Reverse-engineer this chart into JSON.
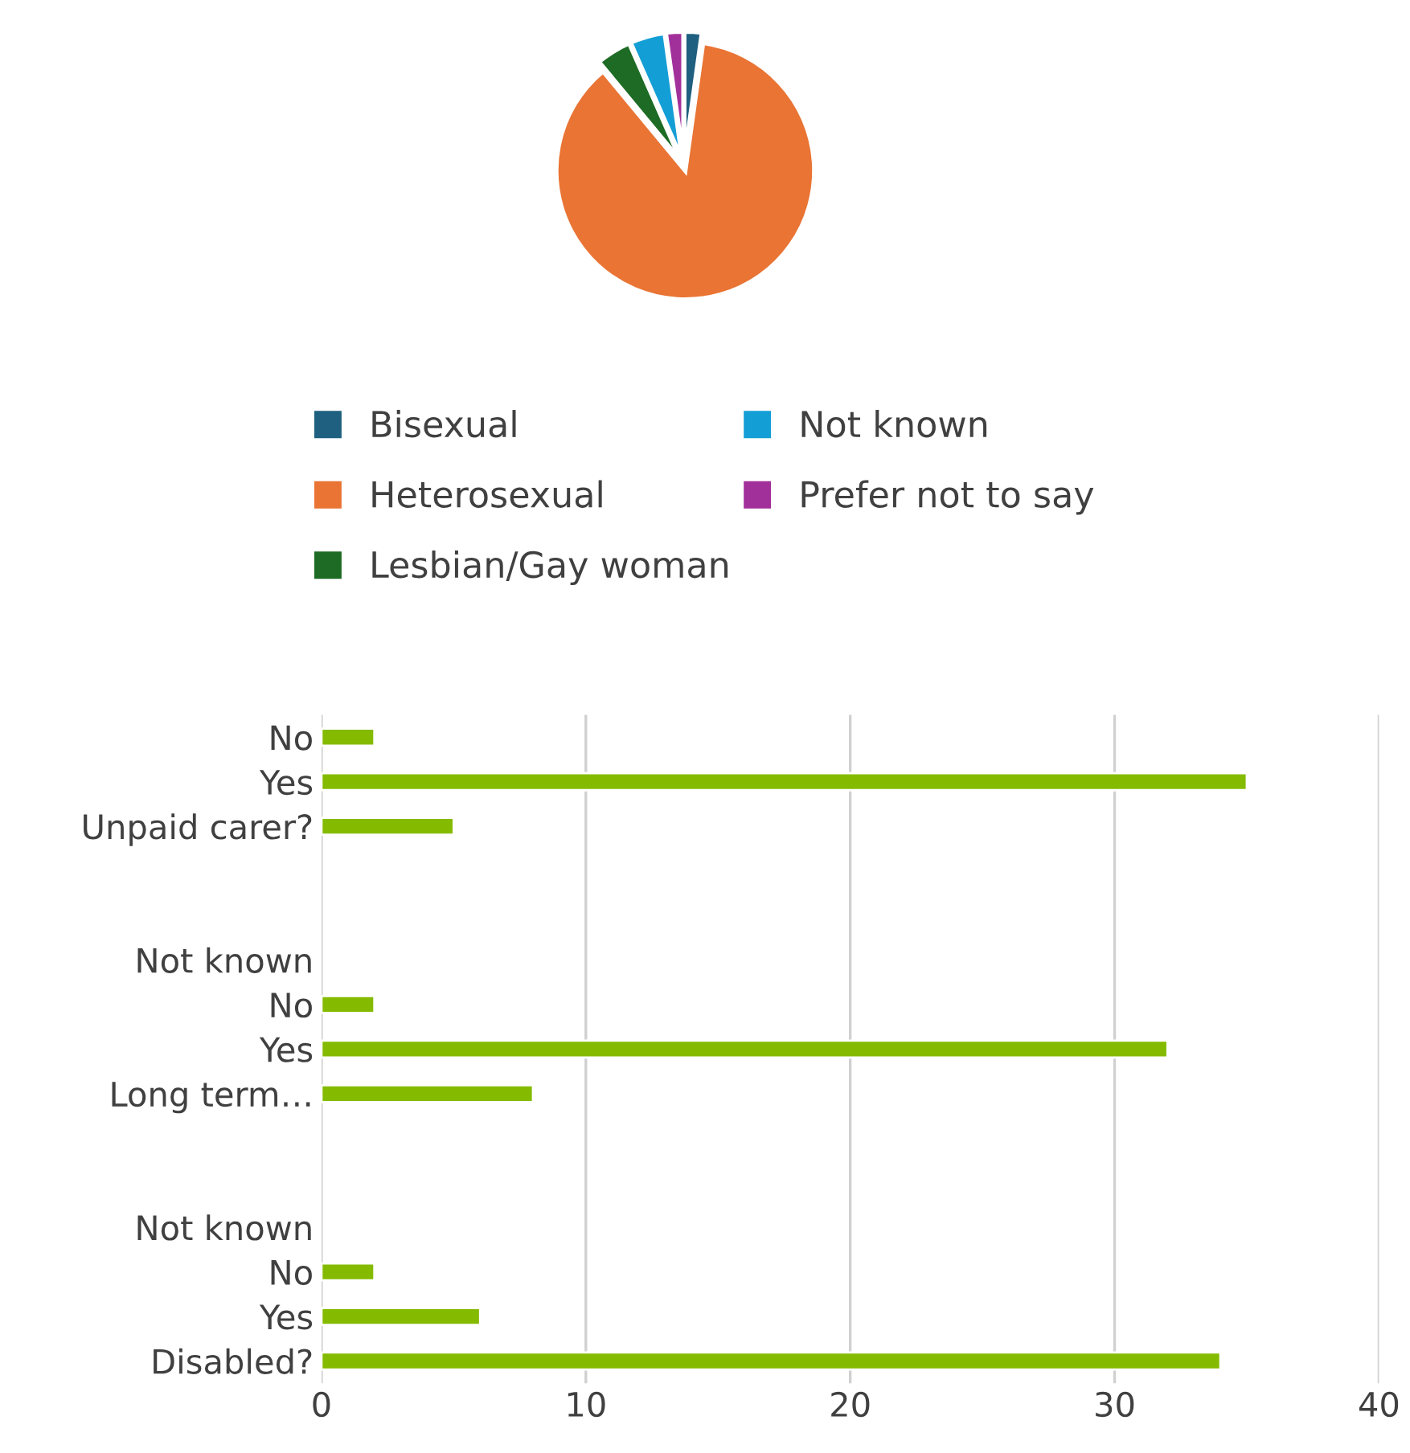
{
  "chart_data": [
    {
      "type": "pie",
      "categories": [
        "Bisexual",
        "Heterosexual",
        "Lesbian/Gay woman",
        "Not known",
        "Prefer not to say"
      ],
      "values": [
        2.2,
        86.8,
        4.4,
        4.4,
        2.2
      ],
      "colors": [
        "#1f5f7f",
        "#e97434",
        "#1d6b24",
        "#149ed6",
        "#a2309a"
      ],
      "legend": "bottom"
    },
    {
      "type": "bar",
      "orientation": "horizontal",
      "categories": [
        "No",
        "Yes",
        "Unpaid carer?",
        null,
        null,
        "Not known",
        "No",
        "Yes",
        "Long term…",
        null,
        null,
        "Not known",
        "No",
        "Yes",
        "Disabled?"
      ],
      "values": [
        2,
        35,
        5,
        null,
        null,
        null,
        2,
        32,
        8,
        null,
        null,
        null,
        2,
        6,
        34
      ],
      "color": "#84bb00",
      "xlim": [
        0,
        40
      ],
      "xticks": [
        0,
        10,
        20,
        30,
        40
      ],
      "grid": "x"
    }
  ]
}
